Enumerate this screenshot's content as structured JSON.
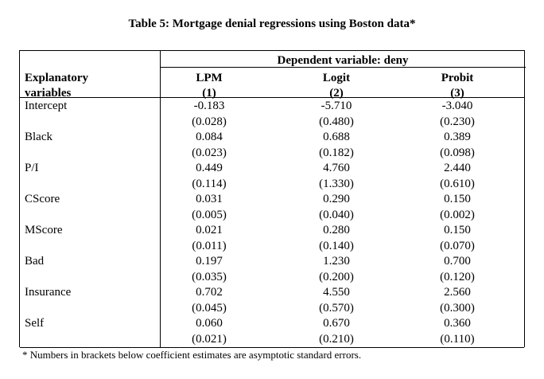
{
  "title": "Table 5: Mortgage denial regressions using Boston data*",
  "dependent_header": "Dependent variable: deny",
  "columns": {
    "label_col_line1": "Explanatory",
    "label_col_line2": "variables",
    "c1_line1": "LPM",
    "c1_line2": "(1)",
    "c2_line1": "Logit",
    "c2_line2": "(2)",
    "c3_line1": "Probit",
    "c3_line2": "(3)"
  },
  "rows": [
    {
      "name": "Intercept",
      "coef": [
        "-0.183",
        "-5.710",
        "-3.040"
      ],
      "se": [
        "(0.028)",
        "(0.480)",
        "(0.230)"
      ]
    },
    {
      "name": "Black",
      "coef": [
        "0.084",
        "0.688",
        "0.389"
      ],
      "se": [
        "(0.023)",
        "(0.182)",
        "(0.098)"
      ]
    },
    {
      "name": "P/I",
      "coef": [
        "0.449",
        "4.760",
        "2.440"
      ],
      "se": [
        "(0.114)",
        "(1.330)",
        "(0.610)"
      ]
    },
    {
      "name": "CScore",
      "coef": [
        "0.031",
        "0.290",
        "0.150"
      ],
      "se": [
        "(0.005)",
        "(0.040)",
        "(0.002)"
      ]
    },
    {
      "name": "MScore",
      "coef": [
        "0.021",
        "0.280",
        "0.150"
      ],
      "se": [
        "(0.011)",
        "(0.140)",
        "(0.070)"
      ]
    },
    {
      "name": "Bad",
      "coef": [
        "0.197",
        "1.230",
        "0.700"
      ],
      "se": [
        "(0.035)",
        "(0.200)",
        "(0.120)"
      ]
    },
    {
      "name": "Insurance",
      "coef": [
        "0.702",
        "4.550",
        "2.560"
      ],
      "se": [
        "(0.045)",
        "(0.570)",
        "(0.300)"
      ]
    },
    {
      "name": "Self",
      "coef": [
        "0.060",
        "0.670",
        "0.360"
      ],
      "se": [
        "(0.021)",
        "(0.210)",
        "(0.110)"
      ]
    }
  ],
  "footnote": "* Numbers in brackets below coefficient estimates are asymptotic standard errors."
}
